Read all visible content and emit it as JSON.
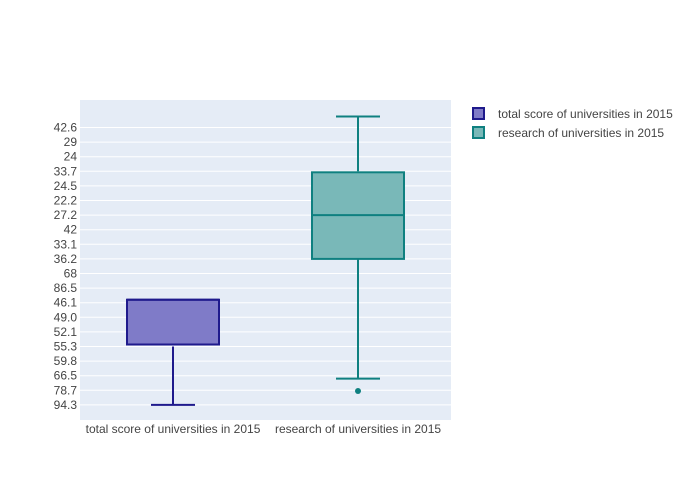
{
  "chart_data": {
    "type": "box",
    "y_axis": {
      "type": "category",
      "ticks_top_to_bottom": [
        "42.6",
        "29",
        "24",
        "33.7",
        "24.5",
        "22.2",
        "27.2",
        "42",
        "33.1",
        "36.2",
        "68",
        "86.5",
        "46.1",
        "49.0",
        "52.1",
        "55.3",
        "59.8",
        "66.5",
        "78.7",
        "94.3"
      ]
    },
    "categories": [
      "total score of universities in 2015",
      "research of universities in 2015"
    ],
    "series": [
      {
        "name": "total score of universities in 2015",
        "color": "#1f1a8c",
        "fill": "#7f7bc8",
        "lower_fence": "94.3",
        "q1": "55.3",
        "median": "46.1",
        "q3": "46.1",
        "upper_fence": "46.1",
        "outliers": []
      },
      {
        "name": "research of universities in 2015",
        "color": "#0f8080",
        "fill": "#79b8b8",
        "lower_fence": "78.7",
        "q1": "36.2",
        "median": "27.2",
        "q3": "33.7",
        "upper_fence": "42.6",
        "outliers": [
          "94.3"
        ]
      }
    ],
    "legend": {
      "position": "top-right"
    },
    "grid": true
  }
}
